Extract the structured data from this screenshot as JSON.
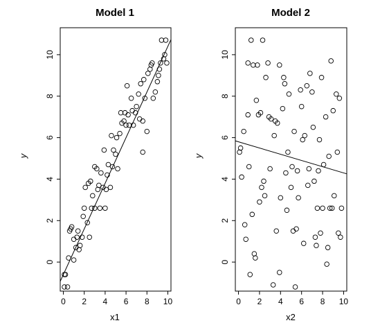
{
  "chart_data": [
    {
      "type": "scatter",
      "title": "Model 1",
      "xlabel": "x1",
      "ylabel": "y",
      "xlim": [
        -0.3,
        10.3
      ],
      "ylim": [
        -1.4,
        11.3
      ],
      "xticks": [
        "0",
        "2",
        "4",
        "6",
        "8",
        "10"
      ],
      "yticks": [
        "0",
        "2",
        "4",
        "6",
        "8",
        "10"
      ],
      "grid": false,
      "fit_line": {
        "intercept": -0.6,
        "slope": 1.1
      },
      "points": [
        [
          0.1,
          -0.6
        ],
        [
          0.1,
          -1.2
        ],
        [
          0.2,
          -0.6
        ],
        [
          0.4,
          -1.2
        ],
        [
          0.5,
          0.2
        ],
        [
          0.6,
          1.5
        ],
        [
          0.7,
          1.6
        ],
        [
          0.8,
          1.7
        ],
        [
          1,
          1.1
        ],
        [
          1,
          0.1
        ],
        [
          1.2,
          0.7
        ],
        [
          1.3,
          1.2
        ],
        [
          1.4,
          1.5
        ],
        [
          1.5,
          0.6
        ],
        [
          1.6,
          0.8
        ],
        [
          1.8,
          1.2
        ],
        [
          1.9,
          2.2
        ],
        [
          2,
          2.6
        ],
        [
          2.1,
          3.6
        ],
        [
          2.3,
          1.9
        ],
        [
          2.4,
          3.8
        ],
        [
          2.5,
          1.2
        ],
        [
          2.6,
          3.9
        ],
        [
          2.7,
          2.6
        ],
        [
          2.8,
          3.2
        ],
        [
          3,
          2.6
        ],
        [
          3,
          4.6
        ],
        [
          3.2,
          4.5
        ],
        [
          3.3,
          3.5
        ],
        [
          3.4,
          3.7
        ],
        [
          3.5,
          2.6
        ],
        [
          3.6,
          4.3
        ],
        [
          3.8,
          3.6
        ],
        [
          3.9,
          5.4
        ],
        [
          4,
          2.6
        ],
        [
          4.1,
          3.5
        ],
        [
          4.2,
          4.2
        ],
        [
          4.3,
          4.7
        ],
        [
          4.5,
          3.6
        ],
        [
          4.6,
          6.1
        ],
        [
          4.7,
          4.6
        ],
        [
          4.8,
          5.4
        ],
        [
          5,
          5.2
        ],
        [
          5.1,
          6
        ],
        [
          5.2,
          4.5
        ],
        [
          5.4,
          6.2
        ],
        [
          5.5,
          7.2
        ],
        [
          5.6,
          6.7
        ],
        [
          5.8,
          6.8
        ],
        [
          5.9,
          7.2
        ],
        [
          6,
          6.6
        ],
        [
          6.1,
          8.5
        ],
        [
          6.2,
          7.1
        ],
        [
          6.3,
          6.6
        ],
        [
          6.5,
          7.9
        ],
        [
          6.6,
          7.3
        ],
        [
          6.7,
          6.6
        ],
        [
          6.9,
          7.2
        ],
        [
          7,
          7.5
        ],
        [
          7.2,
          8.1
        ],
        [
          7.3,
          6.9
        ],
        [
          7.4,
          8.6
        ],
        [
          7.6,
          5.3
        ],
        [
          7.6,
          6.8
        ],
        [
          7.7,
          8.8
        ],
        [
          7.8,
          7.9
        ],
        [
          8,
          6.3
        ],
        [
          8.1,
          9.1
        ],
        [
          8.3,
          9.3
        ],
        [
          8.4,
          9.5
        ],
        [
          8.5,
          9.6
        ],
        [
          8.6,
          7.9
        ],
        [
          8.8,
          8.2
        ],
        [
          9,
          8.7
        ],
        [
          9.1,
          9
        ],
        [
          9.2,
          9.3
        ],
        [
          9.3,
          9.6
        ],
        [
          9.4,
          10.7
        ],
        [
          9.6,
          9.8
        ],
        [
          9.7,
          10
        ],
        [
          9.8,
          10.7
        ],
        [
          9.9,
          9.6
        ]
      ]
    },
    {
      "type": "scatter",
      "title": "Model 2",
      "xlabel": "x2",
      "ylabel": "y",
      "xlim": [
        -0.3,
        10.3
      ],
      "ylim": [
        -1.4,
        11.3
      ],
      "xticks": [
        "0",
        "2",
        "4",
        "6",
        "8",
        "10"
      ],
      "yticks": [
        "0",
        "2",
        "4",
        "6",
        "8",
        "10"
      ],
      "grid": false,
      "fit_line": {
        "intercept": 5.8,
        "slope": -0.15
      },
      "points": [
        [
          0.1,
          5.3
        ],
        [
          0.2,
          5.5
        ],
        [
          0.3,
          4.1
        ],
        [
          0.5,
          6.3
        ],
        [
          0.6,
          1.8
        ],
        [
          0.7,
          1.1
        ],
        [
          0.9,
          9.6
        ],
        [
          0.9,
          7.1
        ],
        [
          1,
          4.6
        ],
        [
          1.1,
          -0.6
        ],
        [
          1.2,
          10.7
        ],
        [
          1.3,
          2.3
        ],
        [
          1.4,
          9.5
        ],
        [
          1.5,
          0.4
        ],
        [
          1.6,
          0.2
        ],
        [
          1.7,
          7.8
        ],
        [
          1.8,
          9.5
        ],
        [
          1.9,
          7.1
        ],
        [
          2,
          2.9
        ],
        [
          2.1,
          7.2
        ],
        [
          2.2,
          3.6
        ],
        [
          2.3,
          10.7
        ],
        [
          2.4,
          3.9
        ],
        [
          2.5,
          3.2
        ],
        [
          2.6,
          8.9
        ],
        [
          2.8,
          9.6
        ],
        [
          2.9,
          7
        ],
        [
          3,
          4.5
        ],
        [
          3.1,
          6.9
        ],
        [
          3.3,
          -1.1
        ],
        [
          3.4,
          6.1
        ],
        [
          3.5,
          6.8
        ],
        [
          3.6,
          1.5
        ],
        [
          3.7,
          6.7
        ],
        [
          3.9,
          -0.5
        ],
        [
          3.9,
          9.5
        ],
        [
          4,
          3.1
        ],
        [
          4.2,
          7.4
        ],
        [
          4.3,
          8.9
        ],
        [
          4.4,
          8.6
        ],
        [
          4.5,
          4.3
        ],
        [
          4.6,
          2.5
        ],
        [
          4.7,
          5.3
        ],
        [
          4.8,
          8.1
        ],
        [
          5,
          3.6
        ],
        [
          5.1,
          4.6
        ],
        [
          5.2,
          1.5
        ],
        [
          5.3,
          6.3
        ],
        [
          5.4,
          -1.2
        ],
        [
          5.5,
          1.6
        ],
        [
          5.6,
          4.4
        ],
        [
          5.7,
          3.1
        ],
        [
          5.9,
          8.3
        ],
        [
          6,
          7.5
        ],
        [
          6.1,
          5.9
        ],
        [
          6.2,
          0.9
        ],
        [
          6.3,
          6.1
        ],
        [
          6.5,
          8.5
        ],
        [
          6.6,
          3.7
        ],
        [
          6.7,
          4.5
        ],
        [
          6.8,
          9.1
        ],
        [
          7,
          8.2
        ],
        [
          7.1,
          6.5
        ],
        [
          7.2,
          3.9
        ],
        [
          7.3,
          1.2
        ],
        [
          7.4,
          0.8
        ],
        [
          7.5,
          2.6
        ],
        [
          7.6,
          4.4
        ],
        [
          7.7,
          5.9
        ],
        [
          7.8,
          1.4
        ],
        [
          7.9,
          8.9
        ],
        [
          8,
          2.6
        ],
        [
          8.1,
          4.7
        ],
        [
          8.3,
          7
        ],
        [
          8.4,
          -0.1
        ],
        [
          8.5,
          0.7
        ],
        [
          8.6,
          5.1
        ],
        [
          8.7,
          2.6
        ],
        [
          8.8,
          9.7
        ],
        [
          8.9,
          2.6
        ],
        [
          9,
          7.3
        ],
        [
          9.1,
          3.2
        ],
        [
          9.3,
          8.1
        ],
        [
          9.4,
          5.3
        ],
        [
          9.5,
          1.4
        ],
        [
          9.6,
          7.9
        ],
        [
          9.7,
          1.2
        ],
        [
          9.8,
          2.6
        ]
      ]
    }
  ]
}
